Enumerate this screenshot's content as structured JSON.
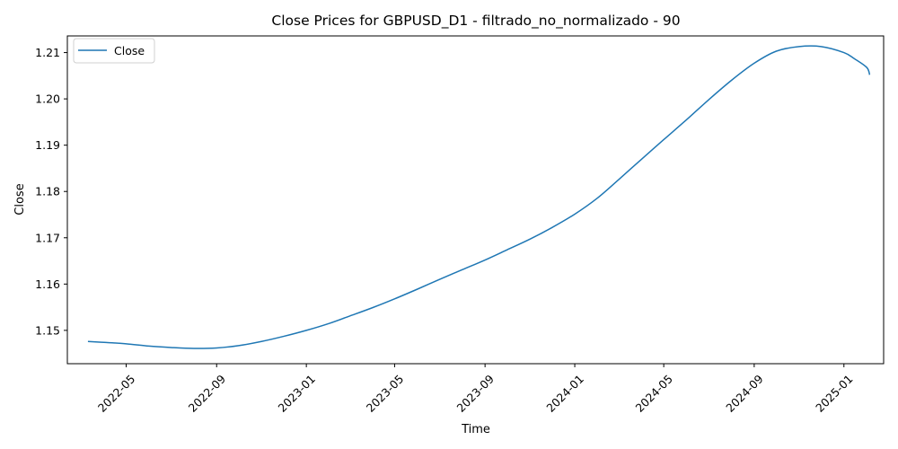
{
  "chart_data": {
    "type": "line",
    "title": "Close Prices for GBPUSD_D1 - filtrado_no_normalizado - 90",
    "xlabel": "Time",
    "ylabel": "Close",
    "x_ticks": [
      "2022-05",
      "2022-09",
      "2023-01",
      "2023-05",
      "2023-09",
      "2024-01",
      "2024-05",
      "2024-09",
      "2025-01"
    ],
    "y_ticks": [
      "1.15",
      "1.16",
      "1.17",
      "1.18",
      "1.19",
      "1.20",
      "1.21"
    ],
    "xlim": [
      "2022-02-10",
      "2025-02-24"
    ],
    "ylim": [
      1.1428,
      1.2136
    ],
    "grid": false,
    "legend": {
      "position": "top-left",
      "entries": [
        "Close"
      ]
    },
    "series": [
      {
        "name": "Close",
        "color": "#1f77b4",
        "points": [
          [
            "2022-03-10",
            1.1476
          ],
          [
            "2022-04-01",
            1.1474
          ],
          [
            "2022-05-01",
            1.1471
          ],
          [
            "2022-06-01",
            1.1466
          ],
          [
            "2022-07-01",
            1.1463
          ],
          [
            "2022-08-01",
            1.1461
          ],
          [
            "2022-09-01",
            1.1462
          ],
          [
            "2022-10-01",
            1.1467
          ],
          [
            "2022-11-01",
            1.1476
          ],
          [
            "2022-12-01",
            1.1487
          ],
          [
            "2023-01-01",
            1.15
          ],
          [
            "2023-02-01",
            1.1515
          ],
          [
            "2023-03-01",
            1.1531
          ],
          [
            "2023-04-01",
            1.1549
          ],
          [
            "2023-05-01",
            1.1568
          ],
          [
            "2023-06-01",
            1.1589
          ],
          [
            "2023-07-01",
            1.161
          ],
          [
            "2023-08-01",
            1.1631
          ],
          [
            "2023-09-01",
            1.1652
          ],
          [
            "2023-10-01",
            1.1674
          ],
          [
            "2023-11-01",
            1.1697
          ],
          [
            "2023-12-01",
            1.1722
          ],
          [
            "2024-01-01",
            1.1751
          ],
          [
            "2024-02-01",
            1.1786
          ],
          [
            "2024-03-01",
            1.1826
          ],
          [
            "2024-04-01",
            1.187
          ],
          [
            "2024-05-01",
            1.1912
          ],
          [
            "2024-06-01",
            1.1955
          ],
          [
            "2024-07-01",
            1.1998
          ],
          [
            "2024-08-01",
            1.204
          ],
          [
            "2024-09-01",
            1.2077
          ],
          [
            "2024-10-01",
            1.2103
          ],
          [
            "2024-11-01",
            1.2113
          ],
          [
            "2024-12-01",
            1.2113
          ],
          [
            "2025-01-01",
            1.21
          ],
          [
            "2025-01-15",
            1.2087
          ],
          [
            "2025-02-01",
            1.2068
          ],
          [
            "2025-02-05",
            1.2052
          ]
        ]
      }
    ]
  }
}
